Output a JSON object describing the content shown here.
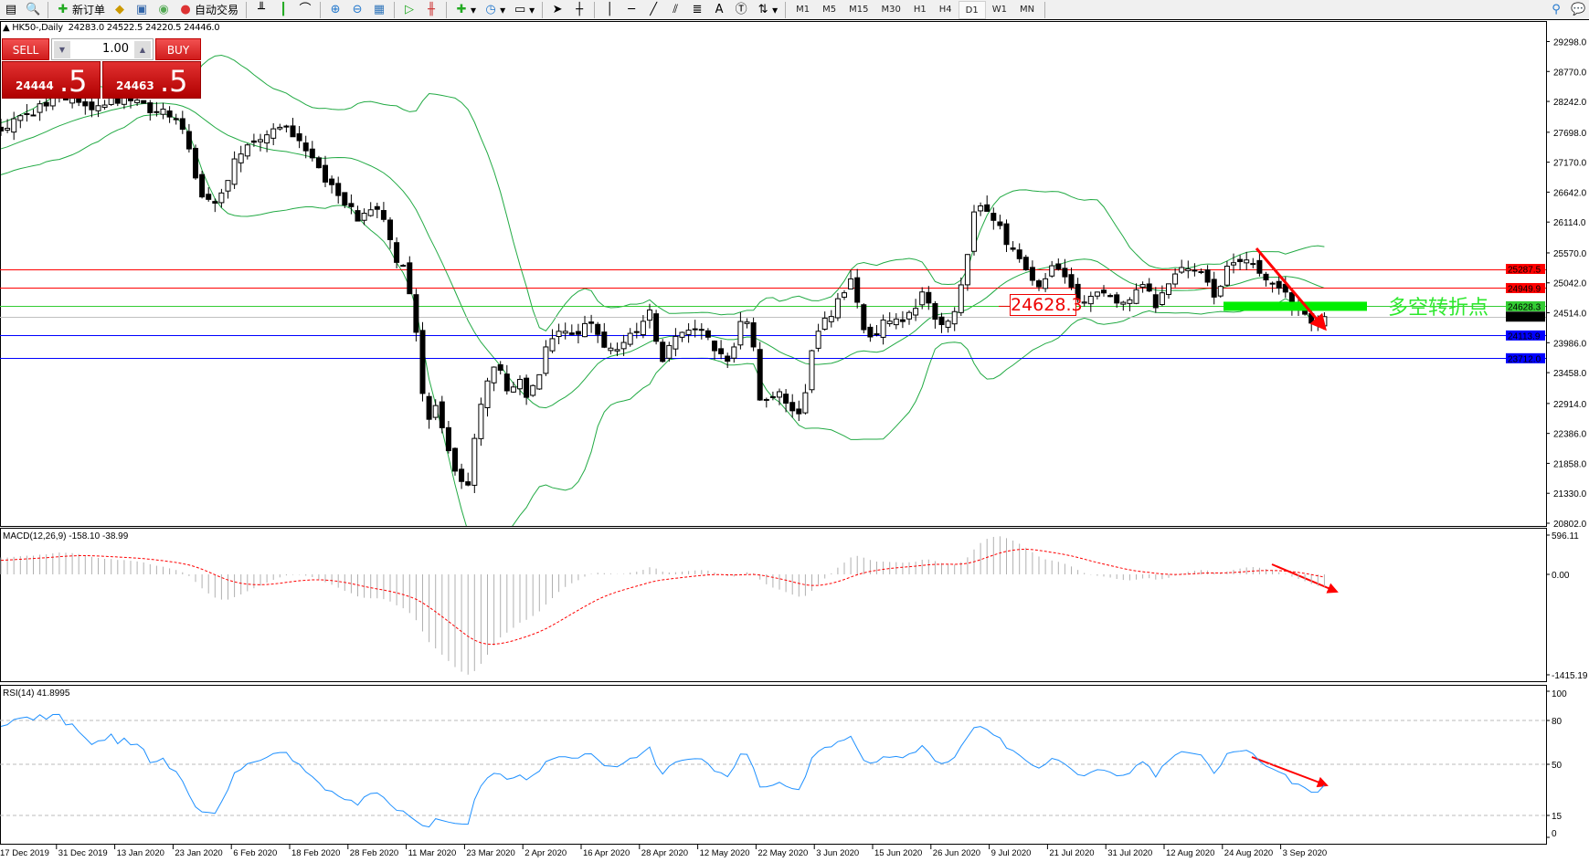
{
  "toolbar": {
    "new_order": "新订单",
    "auto_trade": "自动交易",
    "timeframes": [
      "M1",
      "M5",
      "M15",
      "M30",
      "H1",
      "H4",
      "D1",
      "W1",
      "MN"
    ],
    "active_timeframe": "D1",
    "tools": [
      "line-vertical",
      "line-horizontal",
      "trendline",
      "fibonacci",
      "fibonacci-fan",
      "text",
      "label",
      "arrows"
    ],
    "text_tool": "A"
  },
  "header": {
    "symbol": "HK50-,Daily",
    "open": "24283.0",
    "high": "24522.5",
    "low": "24220.5",
    "close": "24446.0"
  },
  "trade_panel": {
    "sell_label": "SELL",
    "buy_label": "BUY",
    "lot": "1.00",
    "sell_main": "24444",
    "sell_frac": ".5",
    "buy_main": "24463",
    "buy_frac": ".5",
    "color": "#d01c1c"
  },
  "price_axis": {
    "ticks": [
      "29298.0",
      "28770.0",
      "28242.0",
      "27698.0",
      "27170.0",
      "26642.0",
      "26114.0",
      "25570.0",
      "25042.0",
      "24514.0",
      "23986.0",
      "23458.0",
      "22914.0",
      "22386.0",
      "21858.0",
      "21330.0",
      "20802.0"
    ]
  },
  "hlines": [
    {
      "price": "25287.5",
      "color": "#ff0000"
    },
    {
      "price": "24949.9",
      "color": "#ff0000"
    },
    {
      "price": "24628.3",
      "color": "#33cc33"
    },
    {
      "price": "24446.0",
      "color": "#000000",
      "line": "#c0c0c0"
    },
    {
      "price": "24113.9",
      "color": "#0000ff"
    },
    {
      "price": "23712.0",
      "color": "#0000ff"
    }
  ],
  "annotations": {
    "pivot_text": "多空转折点",
    "pivot_label": "24628.3",
    "pivot_color": "#00ee00",
    "arrow_color": "#ff0000"
  },
  "macd": {
    "header": "MACD(12,26,9) -158.10 -38.99",
    "axis": [
      "596.11",
      "0.00",
      "-1415.19"
    ]
  },
  "rsi": {
    "header": "RSI(14) 41.8995",
    "axis": [
      "100",
      "80",
      "50",
      "15",
      "0"
    ],
    "line_color": "#1e90ff"
  },
  "time_axis": [
    "17 Dec 2019",
    "31 Dec 2019",
    "13 Jan 2020",
    "23 Jan 2020",
    "6 Feb 2020",
    "18 Feb 2020",
    "28 Feb 2020",
    "11 Mar 2020",
    "23 Mar 2020",
    "2 Apr 2020",
    "16 Apr 2020",
    "28 Apr 2020",
    "12 May 2020",
    "22 May 2020",
    "3 Jun 2020",
    "15 Jun 2020",
    "26 Jun 2020",
    "9 Jul 2020",
    "21 Jul 2020",
    "31 Jul 2020",
    "12 Aug 2020",
    "24 Aug 2020",
    "3 Sep 2020"
  ],
  "chart_data": {
    "type": "candlestick",
    "indicators": [
      "Bollinger Bands(20,2)",
      "MACD(12,26,9)",
      "RSI(14)"
    ],
    "band_color": "#22aa44",
    "ylim": [
      20802,
      29298
    ],
    "close_path": [
      27799,
      27852,
      27924,
      27977,
      28156,
      28334,
      28281,
      28245,
      28245,
      28156,
      28156,
      28245,
      28281,
      28245,
      28156,
      28102,
      28066,
      27977,
      27799,
      27085,
      26460,
      26460,
      26638,
      27174,
      27352,
      27531,
      27674,
      27709,
      27745,
      27620,
      27442,
      27263,
      26817,
      26638,
      26460,
      26192,
      26281,
      26460,
      26103,
      25389,
      25300,
      24139,
      22533,
      22890,
      22176,
      21640,
      21373,
      22711,
      23247,
      23782,
      23068,
      23425,
      22890,
      23425,
      23961,
      24139,
      24229,
      24139,
      24407,
      24139,
      23782,
      23961,
      24050,
      24318,
      24586,
      23604,
      23961,
      24139,
      24139,
      24229,
      23961,
      23782,
      23693,
      24407,
      24318,
      22890,
      23068,
      23157,
      22801,
      22711,
      23872,
      24318,
      24496,
      24853,
      25121,
      24318,
      23961,
      24318,
      24407,
      24318,
      24586,
      24853,
      24496,
      24229,
      24407,
      25121,
      26281,
      26371,
      26192,
      25835,
      25657,
      25389,
      25032,
      25032,
      25389,
      25210,
      24853,
      24764,
      24853,
      24853,
      24675,
      24675,
      24853,
      25032,
      24586,
      25032,
      25300,
      25300,
      25300,
      25121,
      24764,
      25300,
      25478,
      25478,
      25300,
      25032,
      24943,
      24764,
      24586,
      24407,
      24318,
      24446
    ]
  }
}
